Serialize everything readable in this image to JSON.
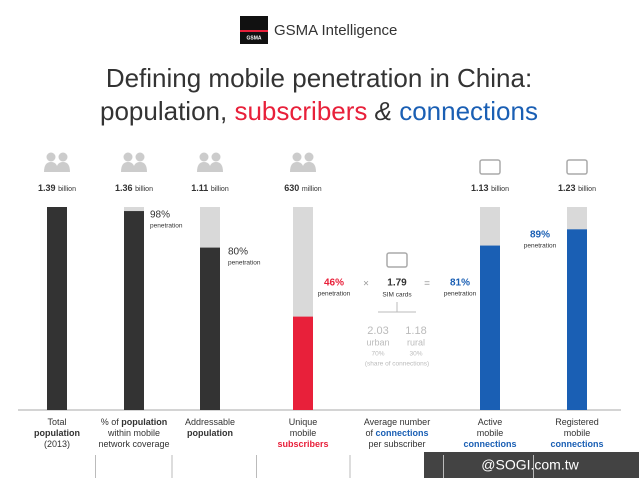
{
  "brand": {
    "logo": "GSMA",
    "name": "GSMA Intelligence"
  },
  "chart_data": {
    "type": "bar",
    "title": [
      "Defining mobile penetration in China:",
      "population,",
      "subscribers",
      "&",
      "connections"
    ],
    "categories": [
      [
        [
          "Total"
        ],
        [
          "population"
        ],
        [
          "(2013)"
        ]
      ],
      [
        [
          "% of ",
          "population"
        ],
        [
          "within mobile"
        ],
        [
          "network coverage"
        ]
      ],
      [
        [
          "Addressable"
        ],
        [
          "population"
        ]
      ],
      [
        [
          "Unique"
        ],
        [
          "mobile"
        ],
        [
          "subscribers"
        ]
      ],
      [
        [
          "Average number"
        ],
        [
          "of ",
          "connections"
        ],
        [
          "per subscriber"
        ]
      ],
      [
        [
          "Active"
        ],
        [
          "mobile"
        ],
        [
          "connections"
        ]
      ],
      [
        [
          "Registered"
        ],
        [
          "mobile"
        ],
        [
          "connections"
        ]
      ]
    ],
    "values": [
      100,
      98,
      80,
      46,
      null,
      81,
      89
    ],
    "value_labels": [
      null,
      "98%",
      "80%",
      "46%",
      null,
      "81%",
      "89%"
    ],
    "penetration_label": "penetration",
    "amounts": [
      "1.39",
      "1.36",
      "1.11",
      "630",
      null,
      "1.13",
      "1.23"
    ],
    "amount_units": [
      "billion",
      "billion",
      "billion",
      "million",
      null,
      "billion",
      "billion"
    ],
    "colors": [
      "#333333",
      "#333333",
      "#333333",
      "#e8203a",
      null,
      "#1a5fb4",
      "#1a5fb4"
    ],
    "ylim": [
      0,
      100
    ],
    "equation": {
      "times": "×",
      "multiplier": "1.79",
      "multiplier_unit": "SIM cards",
      "equals": "=",
      "urban_value": "2.03",
      "urban": "urban",
      "urban_share": "70%",
      "rural_value": "1.18",
      "rural": "rural",
      "rural_share": "30%",
      "share_note": "(share of connections)"
    }
  },
  "watermark": "@SOGI.com.tw"
}
